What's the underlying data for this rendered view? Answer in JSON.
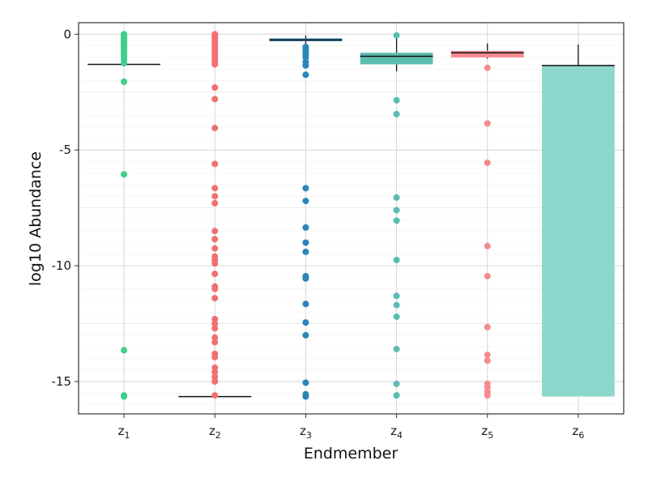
{
  "chart_data": {
    "type": "boxplot",
    "title": "",
    "xlabel": "Endmember",
    "ylabel": "log10 Abundance",
    "ylim": [
      -16.4,
      0.5
    ],
    "yticks": [
      0,
      -5,
      -10,
      -15
    ],
    "ytick_labels": [
      "0",
      "-5",
      "-10",
      "-15"
    ],
    "grid": true,
    "categories": [
      {
        "base": "z",
        "sub": "1",
        "color": "#3ecf8a"
      },
      {
        "base": "z",
        "sub": "2",
        "color": "#f07070"
      },
      {
        "base": "z",
        "sub": "3",
        "color": "#2a86b8"
      },
      {
        "base": "z",
        "sub": "4",
        "color": "#5cbcb0"
      },
      {
        "base": "z",
        "sub": "5",
        "color": "#f58a8e"
      },
      {
        "base": "z",
        "sub": "6",
        "color": "#8dd8cc"
      }
    ],
    "boxes": [
      {
        "q1": -1.3,
        "median": -1.3,
        "q3": -1.3,
        "whisker_low": -1.3,
        "whisker_high": -1.3
      },
      {
        "q1": -15.65,
        "median": -15.65,
        "q3": -15.65,
        "whisker_low": -15.65,
        "whisker_high": -15.65
      },
      {
        "q1": -0.3,
        "median": -0.25,
        "q3": -0.18,
        "whisker_low": -0.45,
        "whisker_high": -0.05
      },
      {
        "q1": -1.3,
        "median": -0.95,
        "q3": -0.8,
        "whisker_low": -1.6,
        "whisker_high": -0.1
      },
      {
        "q1": -1.0,
        "median": -0.8,
        "q3": -0.72,
        "whisker_low": -1.05,
        "whisker_high": -0.4
      },
      {
        "q1": -15.65,
        "median": -1.35,
        "q3": -1.35,
        "whisker_low": -15.65,
        "whisker_high": -0.45
      }
    ],
    "outliers": [
      [
        0,
        -0.05,
        -0.1,
        -0.15,
        -0.2,
        -0.25,
        -0.3,
        -0.35,
        -0.4,
        -0.45,
        -0.5,
        -0.55,
        -0.6,
        -0.65,
        -0.7,
        -0.75,
        -0.8,
        -0.85,
        -0.9,
        -1.0,
        -1.1,
        -1.25,
        -2.05,
        -6.05,
        -13.65,
        -15.6,
        -15.65
      ],
      [
        0,
        -0.05,
        -0.1,
        -0.15,
        -0.2,
        -0.3,
        -0.4,
        -0.5,
        -0.6,
        -0.7,
        -0.8,
        -0.9,
        -1.0,
        -1.1,
        -1.2,
        -1.3,
        -2.3,
        -2.8,
        -4.05,
        -5.6,
        -6.65,
        -7.0,
        -7.3,
        -8.5,
        -8.85,
        -9.25,
        -9.6,
        -9.75,
        -9.9,
        -10.35,
        -10.9,
        -11.0,
        -11.4,
        -12.3,
        -12.5,
        -12.7,
        -13.1,
        -13.3,
        -13.8,
        -13.95,
        -14.4,
        -14.6,
        -14.8,
        -15.0,
        -15.6
      ],
      [
        -0.55,
        -0.6,
        -0.7,
        -0.8,
        -0.9,
        -1.0,
        -1.2,
        -1.35,
        -1.75,
        -6.65,
        -7.2,
        -8.35,
        -9.0,
        -9.4,
        -10.45,
        -10.55,
        -11.65,
        -12.45,
        -13.0,
        -15.05,
        -15.55,
        -15.65
      ],
      [
        -0.05,
        -2.85,
        -3.45,
        -7.05,
        -7.6,
        -8.05,
        -9.75,
        -11.3,
        -11.7,
        -12.2,
        -13.6,
        -15.1,
        -15.6
      ],
      [
        -1.45,
        -3.85,
        -5.55,
        -9.15,
        -10.45,
        -12.65,
        -13.85,
        -14.1,
        -15.1,
        -15.25,
        -15.45,
        -15.6
      ]
    ]
  }
}
